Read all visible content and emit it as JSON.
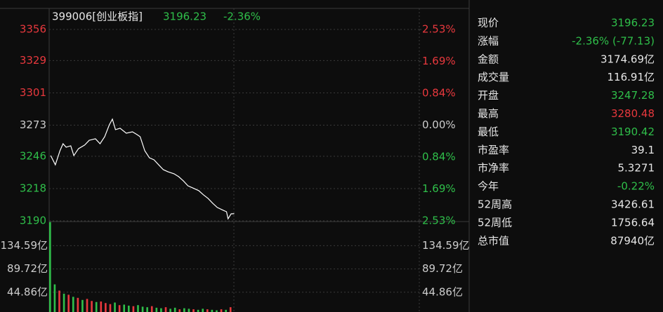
{
  "header": {
    "code": "399006[创业板指]",
    "price": "3196.23",
    "change": "-2.36%"
  },
  "chart_data": {
    "type": "line",
    "xlim": [
      0,
      240
    ],
    "ylim": [
      3190,
      3356
    ],
    "yticks": [
      3356,
      3329,
      3301,
      3273,
      3246,
      3218,
      3190
    ],
    "ytick_colors": [
      "#e8383d",
      "#e8383d",
      "#e8383d",
      "#cccccc",
      "#2fbf4a",
      "#2fbf4a",
      "#2fbf4a"
    ],
    "y2lim": [
      -2.53,
      2.53
    ],
    "y2ticks": [
      {
        "value": 2.53,
        "label": "2.53%"
      },
      {
        "value": 1.69,
        "label": "1.69%"
      },
      {
        "value": 0.84,
        "label": "0.84%"
      },
      {
        "value": 0,
        "label": "0.00%"
      },
      {
        "value": -0.84,
        "label": "0.84%"
      },
      {
        "value": -1.69,
        "label": "1.69%"
      },
      {
        "value": -2.53,
        "label": "2.53%"
      }
    ],
    "y2tick_colors": [
      "#e8383d",
      "#e8383d",
      "#e8383d",
      "#cccccc",
      "#2fbf4a",
      "#2fbf4a",
      "#2fbf4a"
    ],
    "grid": true,
    "series": [
      {
        "name": "创业板指",
        "color": "#ffffff",
        "x": [
          1,
          4,
          7,
          9,
          11,
          14,
          16,
          19,
          23,
          26,
          30,
          33,
          36,
          39,
          41,
          43,
          46,
          50,
          54,
          57,
          59,
          62,
          65,
          68,
          71,
          74,
          77,
          81,
          84,
          87,
          90,
          93,
          97,
          100,
          103,
          106,
          109,
          113,
          115,
          116,
          118,
          120
        ],
        "values": [
          3246.6,
          3238.6,
          3250.8,
          3256.9,
          3253.9,
          3255.1,
          3246.6,
          3252.6,
          3255.7,
          3259.9,
          3261.2,
          3256.9,
          3263.0,
          3273.3,
          3278.2,
          3269.1,
          3270.3,
          3266.0,
          3267.2,
          3264.8,
          3263.0,
          3250.8,
          3244.7,
          3242.9,
          3238.6,
          3234.4,
          3232.6,
          3230.8,
          3228.3,
          3224.7,
          3220.4,
          3218.6,
          3216.2,
          3212.6,
          3209.5,
          3205.3,
          3201.6,
          3199.1,
          3197.9,
          3191.8,
          3196.1,
          3196.23
        ]
      }
    ],
    "volume": {
      "ylim": [
        0,
        181
      ],
      "yticks": [
        {
          "value": 134.59,
          "label": "134.59亿"
        },
        {
          "value": 89.72,
          "label": "89.72亿"
        },
        {
          "value": 44.86,
          "label": "44.86亿"
        }
      ],
      "x": [
        0,
        3,
        6,
        9,
        12,
        15,
        18,
        21,
        24,
        27,
        30,
        33,
        36,
        39,
        42,
        45,
        48,
        51,
        54,
        57,
        60,
        63,
        66,
        69,
        72,
        75,
        78,
        81,
        84,
        87,
        90,
        93,
        96,
        99,
        102,
        105,
        108,
        111,
        114,
        117
      ],
      "values": [
        180,
        60,
        48,
        42,
        40,
        36,
        34,
        30,
        32,
        28,
        26,
        27,
        24,
        22,
        25,
        20,
        21,
        19,
        18,
        20,
        17,
        16,
        18,
        15,
        14,
        16,
        13,
        15,
        12,
        14,
        13,
        12,
        11,
        13,
        12,
        11,
        10,
        12,
        11,
        16
      ],
      "colors": [
        "#2fbf4a",
        "#2fbf4a",
        "#e8383d",
        "#2fbf4a",
        "#e8383d",
        "#2fbf4a",
        "#e8383d",
        "#2fbf4a",
        "#e8383d",
        "#e8383d",
        "#2fbf4a",
        "#e8383d",
        "#e8383d",
        "#e8383d",
        "#2fbf4a",
        "#e8383d",
        "#2fbf4a",
        "#2fbf4a",
        "#e8383d",
        "#2fbf4a",
        "#2fbf4a",
        "#2fbf4a",
        "#e8383d",
        "#2fbf4a",
        "#2fbf4a",
        "#e8383d",
        "#2fbf4a",
        "#2fbf4a",
        "#e8383d",
        "#2fbf4a",
        "#2fbf4a",
        "#e8383d",
        "#2fbf4a",
        "#2fbf4a",
        "#e8383d",
        "#2fbf4a",
        "#2fbf4a",
        "#e8383d",
        "#2fbf4a",
        "#e8383d"
      ]
    }
  },
  "quote_panel": {
    "rows": [
      {
        "label": "现价",
        "value": "3196.23",
        "color": "#2fbf4a"
      },
      {
        "label": "涨幅",
        "value": "-2.36% (-77.13)",
        "color": "#2fbf4a"
      },
      {
        "label": "金额",
        "value": "3174.69亿",
        "color": "#e6e6e6"
      },
      {
        "label": "成交量",
        "value": "116.91亿",
        "color": "#e6e6e6"
      },
      {
        "label": "开盘",
        "value": "3247.28",
        "color": "#2fbf4a"
      },
      {
        "label": "最高",
        "value": "3280.48",
        "color": "#e8383d"
      },
      {
        "label": "最低",
        "value": "3190.42",
        "color": "#2fbf4a"
      },
      {
        "label": "市盈率",
        "value": "39.1",
        "color": "#e6e6e6"
      },
      {
        "label": "市净率",
        "value": "5.3271",
        "color": "#e6e6e6"
      },
      {
        "label": "今年",
        "value": "-0.22%",
        "color": "#2fbf4a"
      },
      {
        "label": "52周高",
        "value": "3426.61",
        "color": "#e6e6e6"
      },
      {
        "label": "52周低",
        "value": "1756.64",
        "color": "#e6e6e6"
      },
      {
        "label": "总市值",
        "value": "87940亿",
        "color": "#e6e6e6"
      }
    ]
  }
}
